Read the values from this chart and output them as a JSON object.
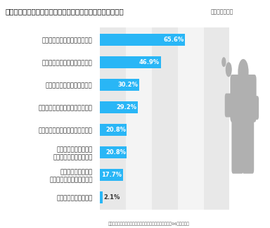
{
  "title": "「卒業後の進路」について、不安を感じる要因は何ですか？",
  "title_suffix": "（複数回答可）",
  "categories": [
    "学力が足りているかわからない",
    "自分に適した進路かわからない",
    "やりたいことが見つからない",
    "社会に出ていく能力に自信がない",
    "自分で決断することに自信がない",
    "経済的な理由で希望が\nかなわないかもしれない",
    "やりたいことをどう\n実現していいかわからない",
    "気がかりなことはない"
  ],
  "values": [
    65.6,
    46.9,
    30.2,
    29.2,
    20.8,
    20.8,
    17.7,
    2.1
  ],
  "bar_color": "#29b6f6",
  "bg_color": "#ffffff",
  "band_color_dark": "#e8e8e8",
  "band_color_light": "#f4f4f4",
  "label_color": "#333333",
  "footnote": "安達学園グループ　将来に関するアンケート（高校生男女96名が回答）",
  "xlim": [
    0,
    100
  ]
}
